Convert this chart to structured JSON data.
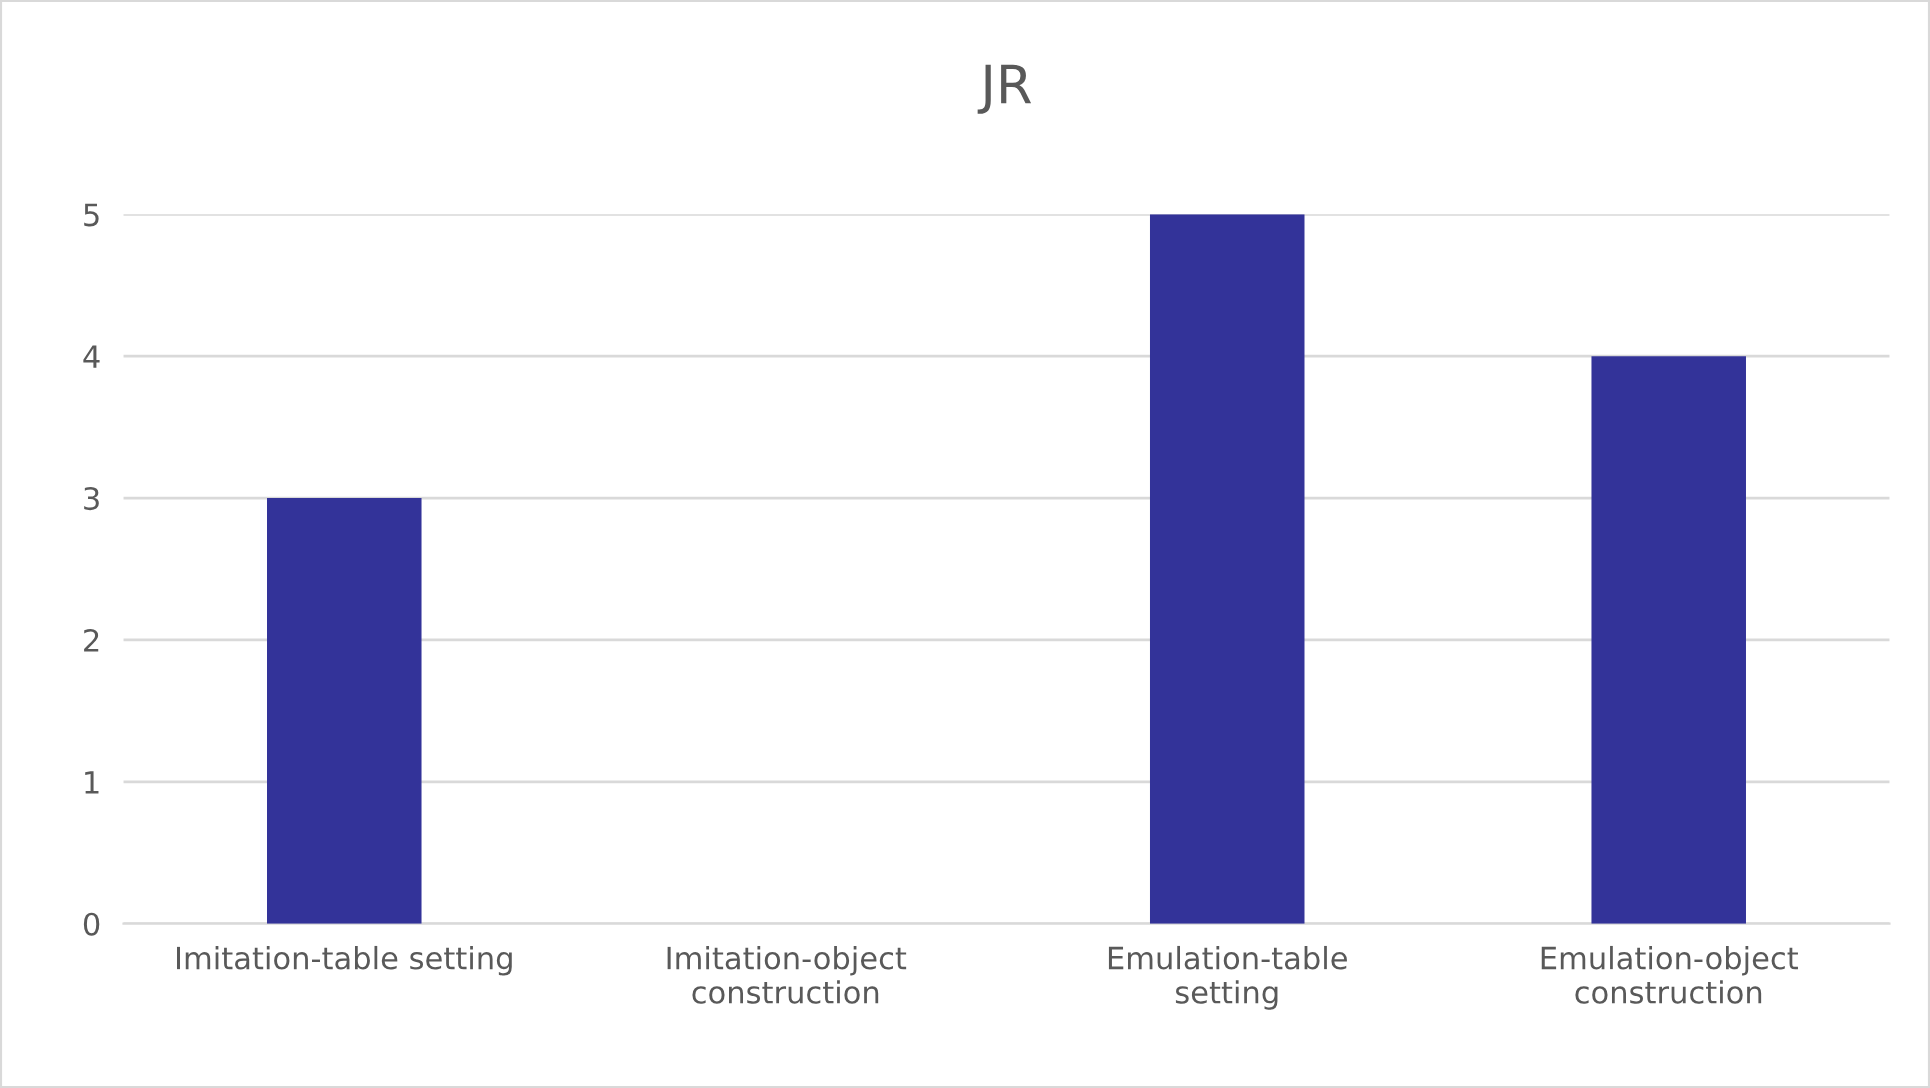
{
  "chart_data": {
    "type": "bar",
    "title": "JR",
    "categories": [
      "Imitation-table setting",
      "Imitation-object\nconstruction",
      "Emulation-table\nsetting",
      "Emulation-object\nconstruction"
    ],
    "values": [
      3,
      0,
      5,
      4
    ],
    "color": "#333399",
    "ylim": [
      0,
      5
    ],
    "yticks": [
      0,
      1,
      2,
      3,
      4,
      5
    ],
    "grid": "y"
  }
}
